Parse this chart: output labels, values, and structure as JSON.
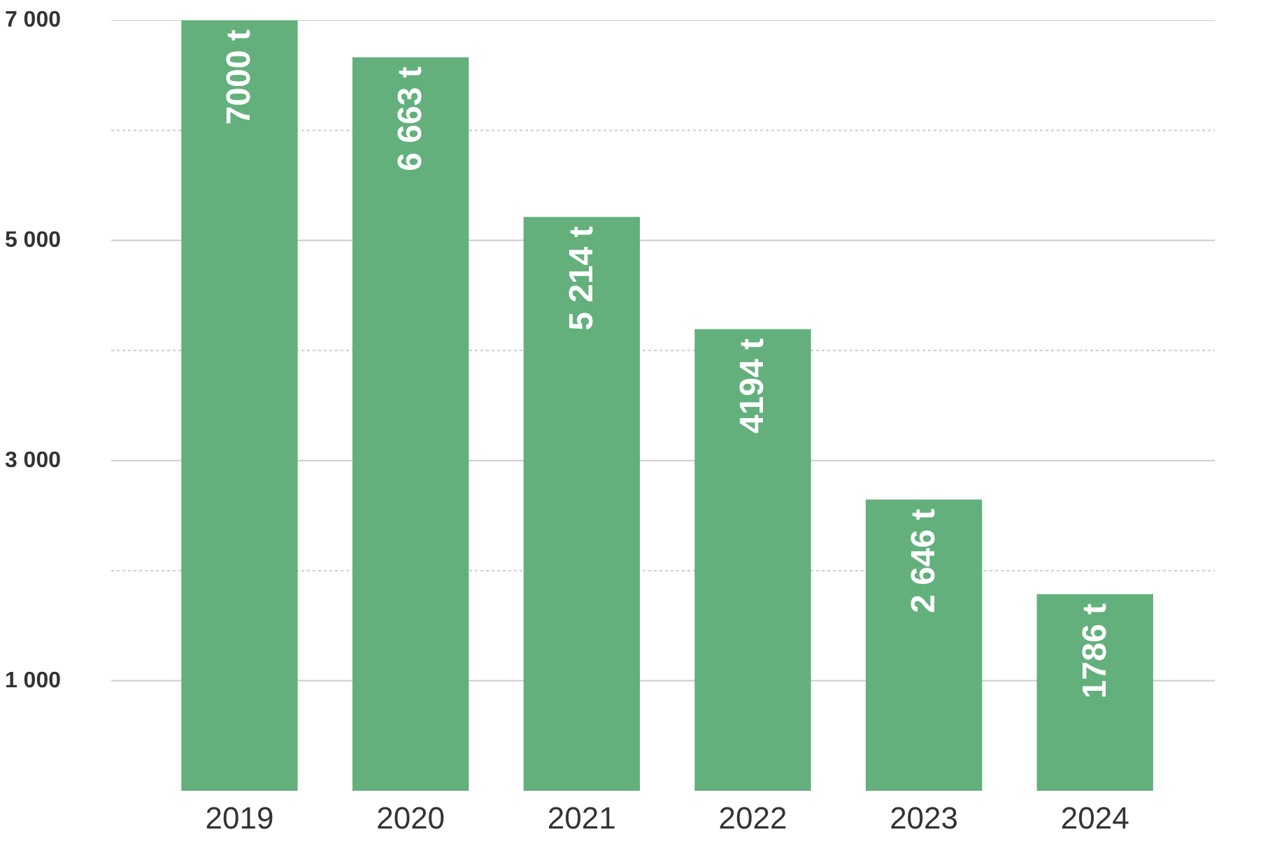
{
  "chart_data": {
    "type": "bar",
    "categories": [
      "2019",
      "2020",
      "2021",
      "2022",
      "2023",
      "2024"
    ],
    "values": [
      7000,
      6663,
      5214,
      4194,
      2646,
      1786
    ],
    "value_labels": [
      "7000 t",
      "6 663 t",
      "5 214 t",
      "4194 t",
      "2 646 t",
      "1786 t"
    ],
    "color": "#63b07d",
    "ylim": [
      0,
      7000
    ],
    "yticks": [
      {
        "value": 1000,
        "label": "1 000"
      },
      {
        "value": 2000,
        "label": null
      },
      {
        "value": 3000,
        "label": "3 000"
      },
      {
        "value": 4000,
        "label": null
      },
      {
        "value": 5000,
        "label": "5 000"
      },
      {
        "value": 6000,
        "label": null
      },
      {
        "value": 7000,
        "label": "7 000"
      }
    ],
    "grid": "y"
  }
}
